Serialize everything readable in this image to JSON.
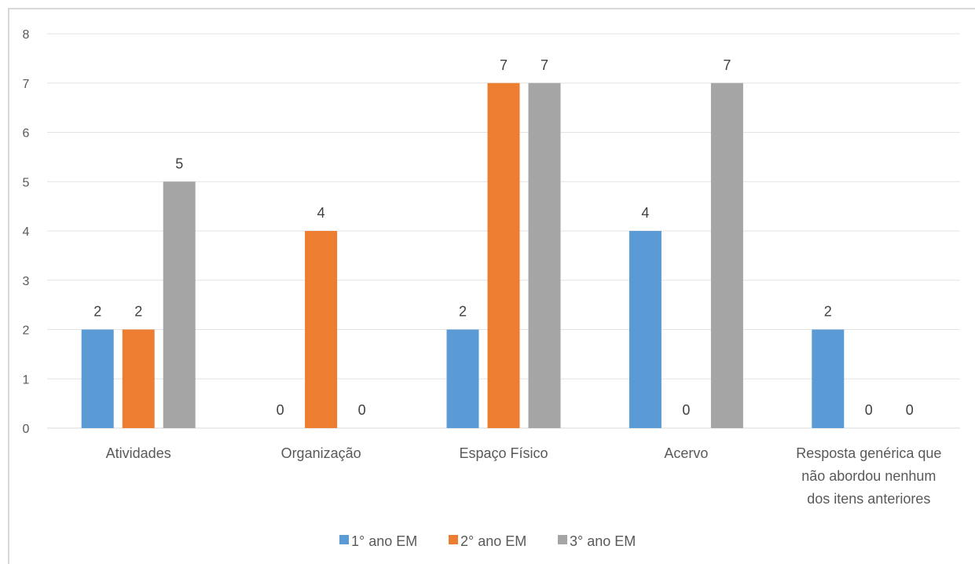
{
  "chart_data": {
    "type": "bar",
    "title": "",
    "xlabel": "",
    "ylabel": "",
    "ylim": [
      0,
      8
    ],
    "yticks": [
      0,
      1,
      2,
      3,
      4,
      5,
      6,
      7,
      8
    ],
    "grid": true,
    "legend_position": "bottom",
    "categories": [
      "Atividades",
      "Organização",
      "Espaço Físico",
      "Acervo",
      "Resposta genérica que não abordou nenhum dos itens anteriores"
    ],
    "category_lines": [
      [
        "Atividades"
      ],
      [
        "Organização"
      ],
      [
        "Espaço Físico"
      ],
      [
        "Acervo"
      ],
      [
        "Resposta genérica que",
        "não abordou nenhum",
        "dos itens anteriores"
      ]
    ],
    "series": [
      {
        "name": "1° ano EM",
        "color": "#5b9bd5",
        "values": [
          2,
          0,
          2,
          4,
          2
        ]
      },
      {
        "name": "2° ano EM",
        "color": "#ed7d31",
        "values": [
          2,
          4,
          7,
          0,
          0
        ]
      },
      {
        "name": "3° ano EM",
        "color": "#a5a5a5",
        "values": [
          5,
          0,
          7,
          7,
          0
        ]
      }
    ]
  }
}
